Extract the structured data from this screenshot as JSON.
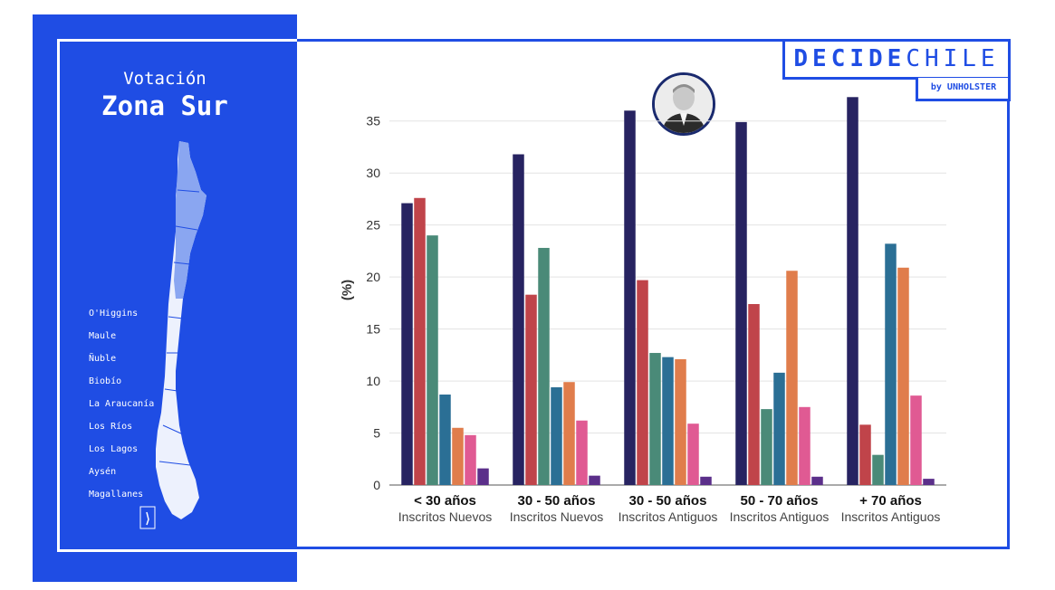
{
  "panel": {
    "title_line1": "Votación",
    "title_line2": "Zona Sur",
    "regions": [
      "O'Higgins",
      "Maule",
      "Ñuble",
      "Biobío",
      "La Araucanía",
      "Los Ríos",
      "Los Lagos",
      "Aysén",
      "Magallanes"
    ],
    "map_icon": "chile-map-icon"
  },
  "logo": {
    "bold": "DECIDE",
    "light": "CHILE",
    "by": "by UNHOLSTER"
  },
  "avatar": {
    "icon": "candidate-photo"
  },
  "colors": {
    "brand_blue": "#1f4de4",
    "series": [
      "#272361",
      "#c0444a",
      "#4a8a78",
      "#2b6f95",
      "#e07d4c",
      "#e05a93",
      "#5b2f8a"
    ]
  },
  "chart_data": {
    "type": "bar",
    "ylabel": "(%)",
    "ylim": [
      0,
      37.5
    ],
    "yticks": [
      0,
      5,
      10,
      15,
      20,
      25,
      30,
      35
    ],
    "grid": true,
    "categories": [
      {
        "label": "< 30 años",
        "sub": "Inscritos Nuevos"
      },
      {
        "label": "30 - 50 años",
        "sub": "Inscritos Nuevos"
      },
      {
        "label": "30 - 50 años",
        "sub": "Inscritos Antiguos"
      },
      {
        "label": "50 - 70 años",
        "sub": "Inscritos Antiguos"
      },
      {
        "label": "+ 70 años",
        "sub": "Inscritos Antiguos"
      }
    ],
    "series": [
      {
        "values": [
          27.1,
          31.8,
          36.0,
          34.9,
          37.3
        ]
      },
      {
        "values": [
          27.6,
          18.3,
          19.7,
          17.4,
          5.8
        ]
      },
      {
        "values": [
          24.0,
          22.8,
          12.7,
          7.3,
          2.9
        ]
      },
      {
        "values": [
          8.7,
          9.4,
          12.3,
          10.8,
          23.2
        ]
      },
      {
        "values": [
          5.5,
          9.9,
          12.1,
          20.6,
          20.9
        ]
      },
      {
        "values": [
          4.8,
          6.2,
          5.9,
          7.5,
          8.6
        ]
      },
      {
        "values": [
          1.6,
          0.9,
          0.8,
          0.8,
          0.6
        ]
      }
    ]
  }
}
